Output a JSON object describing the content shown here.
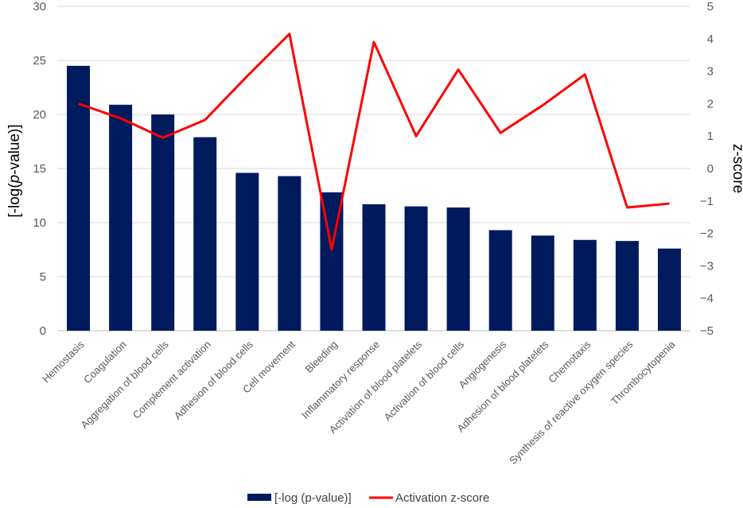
{
  "chart_data": {
    "type": "bar",
    "categories": [
      "Hemostasis",
      "Coagulation",
      "Aggregation of blood cells",
      "Complement activation",
      "Adhesion of blood cells",
      "Cell movement",
      "Bleeding",
      "Inflammatory response",
      "Activation of blood platelets",
      "Activation of blood cells",
      "Angiogenesis",
      "Adhesion of blood platelets",
      "Chemotaxis",
      "Synthesis of reactive oxygen species",
      "Thrombocytopenia"
    ],
    "series": [
      {
        "name": "[-log (p-value)]",
        "type": "bar",
        "axis": "left",
        "color": "#001a5e",
        "values": [
          24.5,
          20.9,
          20.0,
          17.9,
          14.6,
          14.3,
          12.8,
          11.7,
          11.5,
          11.4,
          9.3,
          8.8,
          8.4,
          8.3,
          7.6
        ]
      },
      {
        "name": "Activation z-score",
        "type": "line",
        "axis": "right",
        "color": "#ff0000",
        "values": [
          2.0,
          1.55,
          0.95,
          1.5,
          2.85,
          4.15,
          -2.5,
          3.9,
          1.0,
          3.05,
          1.1,
          1.95,
          2.9,
          -1.2,
          -1.08
        ]
      }
    ],
    "ylabel": "[-log(p-value)]",
    "ylabel_parts": {
      "before": "[-log(",
      "italic": "p",
      "after": "-value)]"
    },
    "y2label": "z-score",
    "ylim": [
      0,
      30
    ],
    "y2lim": [
      -5,
      5
    ],
    "yticks": [
      "0",
      "5",
      "10",
      "15",
      "20",
      "25",
      "30"
    ],
    "y2ticks": [
      "5",
      "4",
      "3",
      "2",
      "1",
      "0",
      "−1",
      "−2",
      "−3",
      "−4",
      "−5"
    ],
    "grid": true,
    "legend_position": "bottom"
  }
}
